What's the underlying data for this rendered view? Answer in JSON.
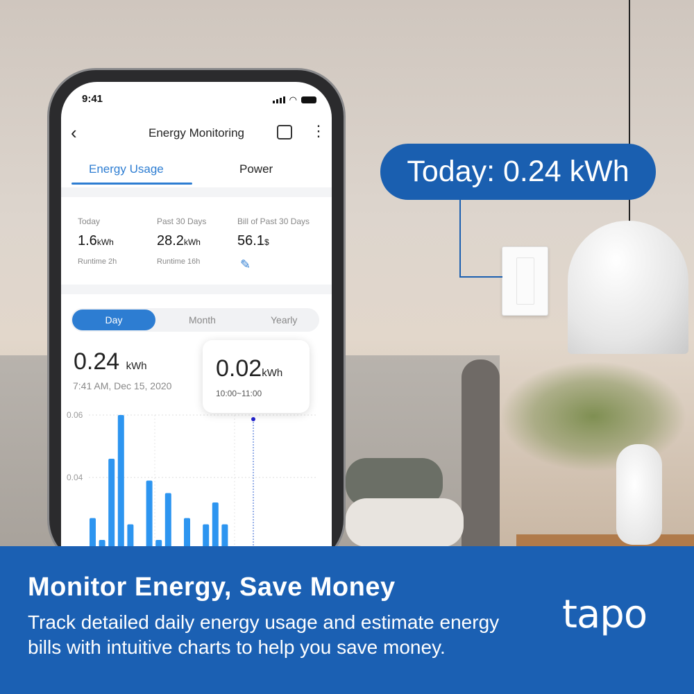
{
  "callout": {
    "text": "Today: 0.24 kWh"
  },
  "phone": {
    "status_time": "9:41",
    "nav": {
      "back_icon": "chevron-left-icon",
      "title": "Energy Monitoring",
      "calendar_icon": "calendar-icon",
      "more_icon": "more-vertical-icon"
    },
    "tabs": [
      {
        "label": "Energy Usage",
        "active": true
      },
      {
        "label": "Power",
        "active": false
      }
    ],
    "stats": [
      {
        "label": "Today",
        "value": "1.6",
        "unit": "kWh",
        "sub": "Runtime 2h"
      },
      {
        "label": "Past 30 Days",
        "value": "28.2",
        "unit": "kWh",
        "sub": "Runtime 16h"
      },
      {
        "label": "Bill of Past 30 Days",
        "value": "56.1",
        "unit": "$",
        "edit_icon": "pencil-icon"
      }
    ],
    "segments": [
      "Day",
      "Month",
      "Yearly"
    ],
    "selected_segment": "Day",
    "total": {
      "value": "0.24",
      "unit": "kWh",
      "timestamp": "7:41 AM, Dec 15, 2020"
    },
    "tooltip": {
      "value": "0.02",
      "unit": "kWh",
      "range": "10:00~11:00"
    }
  },
  "chart_data": {
    "type": "bar",
    "y_ticks": [
      "0.06",
      "0.04"
    ],
    "ylim": [
      0,
      0.06
    ],
    "grid": true,
    "values": [
      0.027,
      0.02,
      0.046,
      0.06,
      0.025,
      null,
      0.039,
      0.02,
      0.035,
      null,
      0.027,
      0.018,
      0.025,
      0.032,
      0.025,
      0.018
    ],
    "bar_color": "#2d95f0"
  },
  "banner": {
    "headline": "Monitor Energy, Save Money",
    "body": "Track detailed daily energy usage and estimate energy bills with intuitive charts to help you save money.",
    "logo": "tapo"
  },
  "colors": {
    "brand_blue": "#1b60b3",
    "accent": "#2d7dd2"
  }
}
